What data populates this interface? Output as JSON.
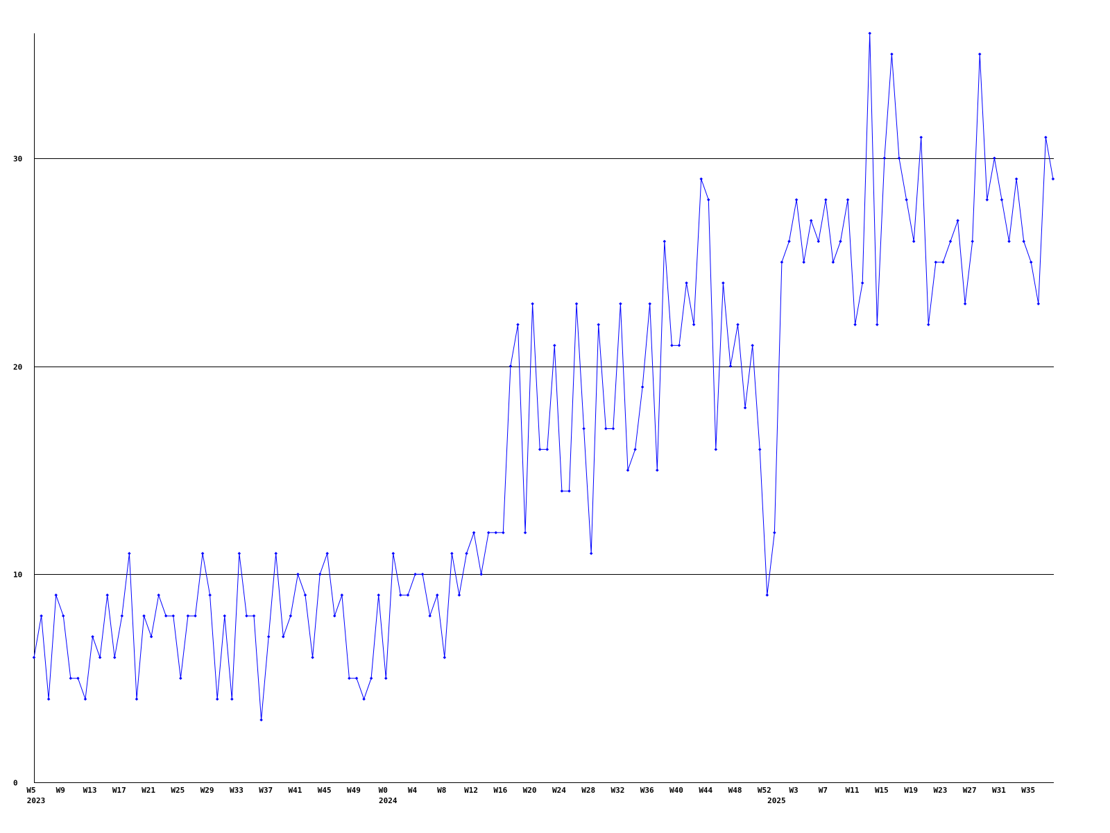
{
  "chart_data": {
    "type": "line",
    "title": "",
    "xlabel": "",
    "ylabel": "",
    "ylim": [
      0,
      36
    ],
    "grid": "horizontal",
    "line_color": "#0000ff",
    "grid_color": "#000000",
    "y_ticks": [
      "0",
      "10",
      "20",
      "30"
    ],
    "x_tick_every": 4,
    "x_tick_labels": [
      "W5",
      "W9",
      "W13",
      "W17",
      "W21",
      "W25",
      "W29",
      "W33",
      "W37",
      "W41",
      "W45",
      "W49",
      "W0",
      "W4",
      "W8",
      "W12",
      "W16",
      "W20",
      "W24",
      "W28",
      "W32",
      "W36",
      "W40",
      "W44",
      "W48",
      "W52",
      "W3",
      "W7",
      "W11",
      "W15",
      "W19",
      "W23",
      "W27",
      "W31",
      "W35"
    ],
    "year_labels": [
      {
        "label": "2023",
        "index": 0
      },
      {
        "label": "2024",
        "index": 48
      },
      {
        "label": "2025",
        "index": 101
      }
    ],
    "segments": [
      {
        "year": "2023",
        "first_week": 5,
        "last_week": 52
      },
      {
        "year": "2024",
        "first_week": 0,
        "last_week": 52
      },
      {
        "year": "2025",
        "first_week": 0,
        "last_week": 38
      }
    ],
    "values": [
      6,
      8,
      4,
      9,
      8,
      5,
      5,
      4,
      7,
      6,
      9,
      6,
      8,
      11,
      4,
      8,
      7,
      9,
      8,
      8,
      5,
      8,
      8,
      11,
      9,
      4,
      8,
      4,
      11,
      8,
      8,
      3,
      7,
      11,
      7,
      8,
      10,
      9,
      6,
      10,
      11,
      8,
      9,
      5,
      5,
      4,
      5,
      9,
      5,
      11,
      9,
      9,
      10,
      10,
      8,
      9,
      6,
      11,
      9,
      11,
      12,
      10,
      12,
      12,
      12,
      20,
      22,
      12,
      23,
      16,
      16,
      21,
      14,
      14,
      23,
      17,
      11,
      22,
      17,
      17,
      23,
      15,
      16,
      19,
      23,
      15,
      26,
      21,
      21,
      24,
      22,
      29,
      28,
      16,
      24,
      20,
      22,
      18,
      21,
      16,
      9,
      12,
      25,
      26,
      28,
      25,
      27,
      26,
      28,
      25,
      26,
      28,
      22,
      24,
      36,
      22,
      30,
      35,
      30,
      28,
      26,
      31,
      22,
      25,
      25,
      26,
      27,
      23,
      26,
      35,
      28,
      30,
      28,
      26,
      29,
      26,
      25,
      23,
      31,
      29
    ]
  }
}
